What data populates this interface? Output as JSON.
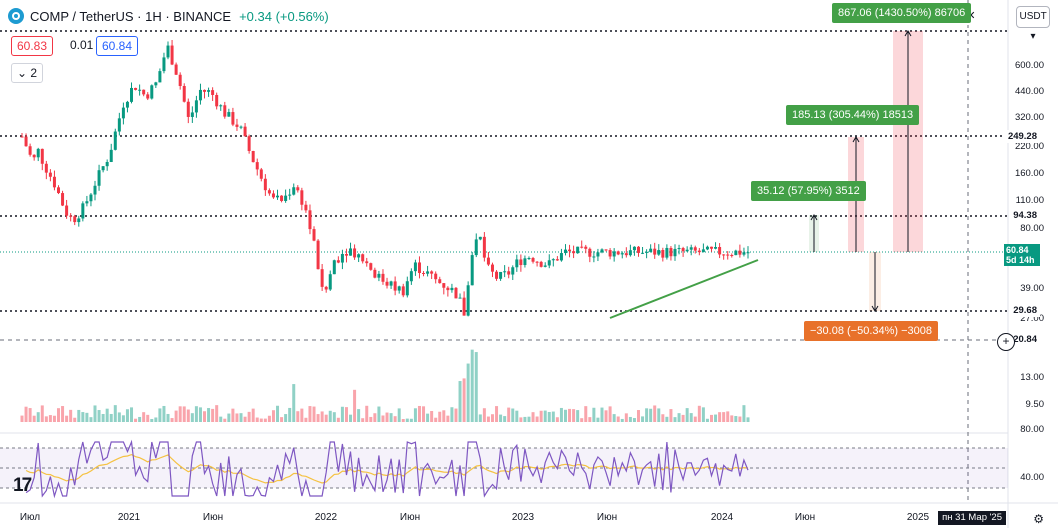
{
  "header": {
    "symbol": "COMP / TetherUS · 1H · BINANCE",
    "change": "+0.34 (+0.56%)"
  },
  "prices": {
    "sell": "60.83",
    "spread": "0.01",
    "buy": "60.84"
  },
  "indicators_toggle": "2",
  "currency_button": "USDT",
  "colors": {
    "up": "#089981",
    "down": "#f23645",
    "wick": "#5d606b",
    "ma": "#f5c242",
    "rsi": "#7e57c2",
    "annot_green": "#43a047",
    "annot_orange": "#e8712a"
  },
  "chart_data": {
    "type": "candlestick",
    "scale": "log",
    "x_labels": [
      "Июл",
      "2021",
      "Июн",
      "2022",
      "Июн",
      "2023",
      "Июн",
      "2024",
      "Июн",
      "2025"
    ],
    "price_axis": [
      "600.00",
      "440.00",
      "320.00",
      "220.00",
      "160.00",
      "110.00",
      "80.00",
      "39.00",
      "27.00",
      "13.00",
      "9.50"
    ],
    "price_labels": [
      {
        "value": "249.28",
        "kind": "level"
      },
      {
        "value": "94.38",
        "kind": "level"
      },
      {
        "value": "29.68",
        "kind": "level"
      },
      {
        "value": "20.84",
        "kind": "crosshair"
      }
    ],
    "current_price": {
      "value": "60.84",
      "countdown": "5d 14h"
    },
    "measurements": [
      {
        "text": "35.12 (57.95%) 3512",
        "color": "green"
      },
      {
        "text": "185.13 (305.44%) 18513",
        "color": "green"
      },
      {
        "text": "867.06 (1430.50%) 86706",
        "color": "green"
      },
      {
        "text": "−30.08 (−50.34%) −3008",
        "color": "orange"
      }
    ],
    "price_series": [
      {
        "t": 0.0,
        "c": 250
      },
      {
        "t": 0.01,
        "c": 205
      },
      {
        "t": 0.015,
        "c": 175
      },
      {
        "t": 0.02,
        "c": 220
      },
      {
        "t": 0.03,
        "c": 180
      },
      {
        "t": 0.045,
        "c": 140
      },
      {
        "t": 0.06,
        "c": 100
      },
      {
        "t": 0.07,
        "c": 90
      },
      {
        "t": 0.085,
        "c": 105
      },
      {
        "t": 0.1,
        "c": 140
      },
      {
        "t": 0.12,
        "c": 200
      },
      {
        "t": 0.14,
        "c": 380
      },
      {
        "t": 0.155,
        "c": 470
      },
      {
        "t": 0.17,
        "c": 410
      },
      {
        "t": 0.185,
        "c": 480
      },
      {
        "t": 0.2,
        "c": 760
      },
      {
        "t": 0.215,
        "c": 520
      },
      {
        "t": 0.23,
        "c": 300
      },
      {
        "t": 0.245,
        "c": 440
      },
      {
        "t": 0.26,
        "c": 430
      },
      {
        "t": 0.28,
        "c": 330
      },
      {
        "t": 0.3,
        "c": 280
      },
      {
        "t": 0.315,
        "c": 200
      },
      {
        "t": 0.33,
        "c": 150
      },
      {
        "t": 0.345,
        "c": 115
      },
      {
        "t": 0.36,
        "c": 115
      },
      {
        "t": 0.375,
        "c": 140
      },
      {
        "t": 0.39,
        "c": 105
      },
      {
        "t": 0.405,
        "c": 60
      },
      {
        "t": 0.415,
        "c": 34
      },
      {
        "t": 0.43,
        "c": 55
      },
      {
        "t": 0.45,
        "c": 64
      },
      {
        "t": 0.47,
        "c": 56
      },
      {
        "t": 0.49,
        "c": 45
      },
      {
        "t": 0.51,
        "c": 40
      },
      {
        "t": 0.525,
        "c": 38
      },
      {
        "t": 0.54,
        "c": 52
      },
      {
        "t": 0.555,
        "c": 48
      },
      {
        "t": 0.57,
        "c": 43
      },
      {
        "t": 0.585,
        "c": 40
      },
      {
        "t": 0.6,
        "c": 36
      },
      {
        "t": 0.61,
        "c": 28
      },
      {
        "t": 0.62,
        "c": 62
      },
      {
        "t": 0.63,
        "c": 75
      },
      {
        "t": 0.64,
        "c": 50
      },
      {
        "t": 0.655,
        "c": 44
      },
      {
        "t": 0.67,
        "c": 47
      },
      {
        "t": 0.685,
        "c": 55
      },
      {
        "t": 0.7,
        "c": 58
      },
      {
        "t": 0.71,
        "c": 55
      },
      {
        "t": 0.725,
        "c": 52
      },
      {
        "t": 0.735,
        "c": 56
      },
      {
        "t": 0.748,
        "c": 60.84
      }
    ],
    "rsi": {
      "levels": [
        70,
        50,
        30
      ],
      "axis": [
        "80.00",
        "40.00"
      ]
    }
  },
  "time_label": "пн 31 Мар '25",
  "tradingview_logo": "17"
}
